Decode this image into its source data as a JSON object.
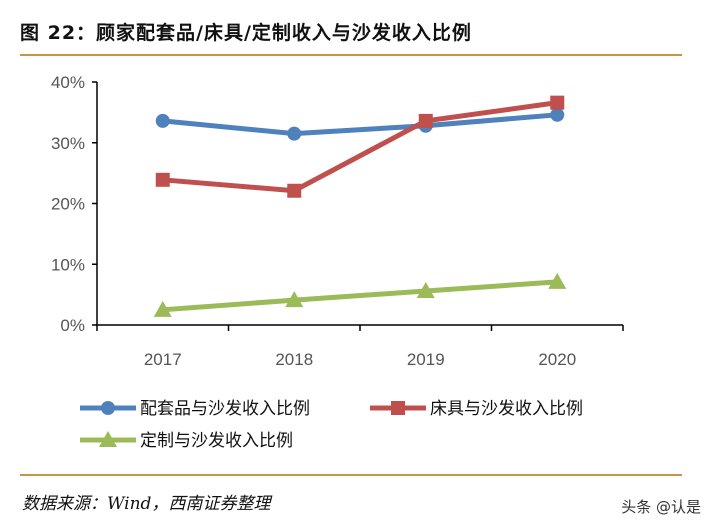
{
  "title": "图 22：顾家配套品/床具/定制收入与沙发收入比例",
  "source": "数据来源：Wind，西南证券整理",
  "watermark": "头条 @认是",
  "chart_data": {
    "type": "line",
    "categories": [
      "2017",
      "2018",
      "2019",
      "2020"
    ],
    "ylim": [
      0,
      40
    ],
    "yticks": [
      "0%",
      "10%",
      "20%",
      "30%",
      "40%"
    ],
    "grid": false,
    "legend": "bottom",
    "series": [
      {
        "name": "配套品与沙发收入比例",
        "values": [
          33.6,
          31.5,
          32.8,
          34.6
        ],
        "color": "#4f81bd",
        "marker": "circle"
      },
      {
        "name": "床具与沙发收入比例",
        "values": [
          23.9,
          22.1,
          33.6,
          36.6
        ],
        "color": "#c0504d",
        "marker": "square"
      },
      {
        "name": "定制与沙发收入比例",
        "values": [
          2.5,
          4.1,
          5.6,
          7.1
        ],
        "color": "#9bbb59",
        "marker": "triangle"
      }
    ]
  }
}
